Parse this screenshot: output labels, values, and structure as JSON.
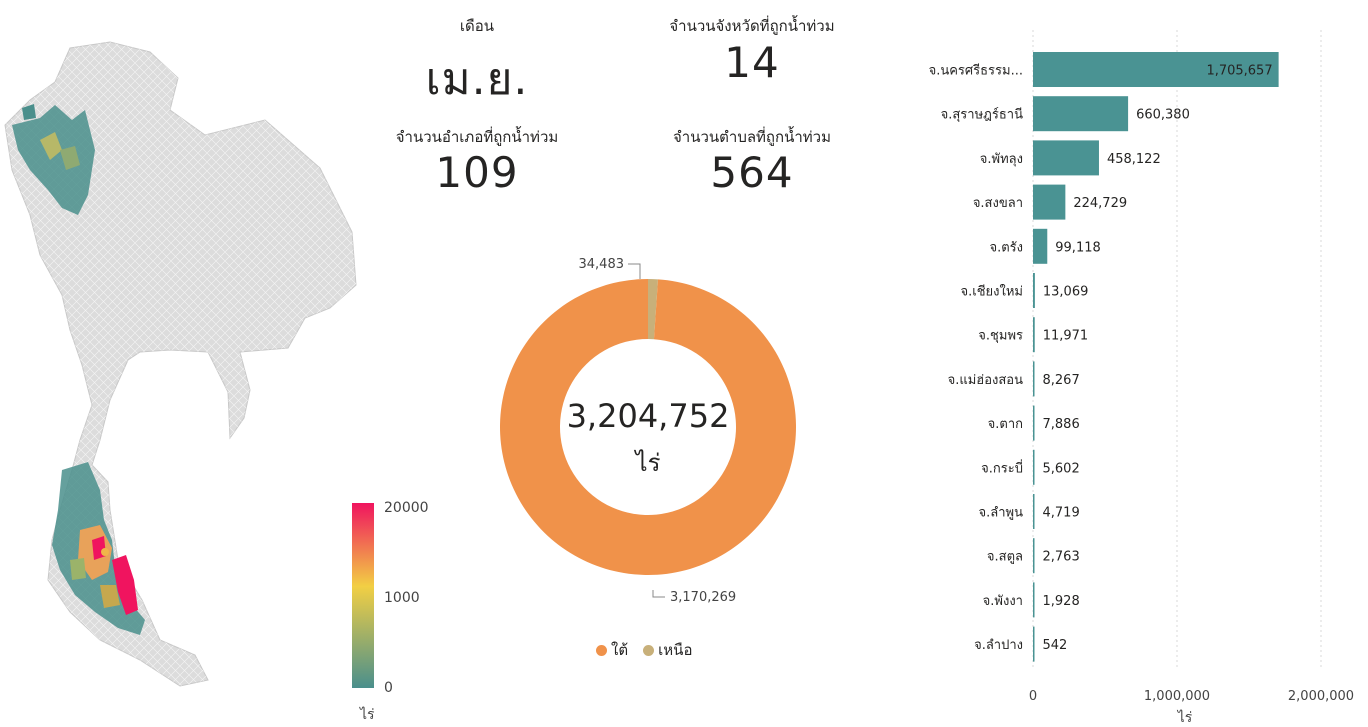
{
  "kpis": {
    "month": {
      "label": "เดือน",
      "value": "เม.ย."
    },
    "provinces": {
      "label": "จำนวนจังหวัดที่ถูกน้ำท่วม",
      "value": "14"
    },
    "districts": {
      "label": "จำนวนอำเภอที่ถูกน้ำท่วม",
      "value": "109"
    },
    "subdistricts": {
      "label": "จำนวนตำบลที่ถูกน้ำท่วม",
      "value": "564"
    }
  },
  "map": {
    "scale_labels": [
      "20000",
      "1000",
      "0"
    ],
    "scale_unit": "ไร่",
    "colors": {
      "high": "#f0145f",
      "mid": "#f2cf44",
      "low": "#4a8f8c",
      "land": "#dcdcdc"
    }
  },
  "chart_data": [
    {
      "type": "pie",
      "donut": true,
      "center_value": "3,204,752",
      "center_unit": "ไร่",
      "slice_labels": [
        "3,170,269",
        "34,483"
      ],
      "series": [
        {
          "name": "ใต้",
          "value": 3170269,
          "color": "#f0924a"
        },
        {
          "name": "เหนือ",
          "value": 34483,
          "color": "#c8b07a"
        }
      ]
    },
    {
      "type": "bar",
      "orientation": "horizontal",
      "categories": [
        "จ.นครศรีธรรม...",
        "จ.สุราษฎร์ธานี",
        "จ.พัทลุง",
        "จ.สงขลา",
        "จ.ตรัง",
        "จ.เชียงใหม่",
        "จ.ชุมพร",
        "จ.แม่ฮ่องสอน",
        "จ.ตาก",
        "จ.กระบี่",
        "จ.ลำพูน",
        "จ.สตูล",
        "จ.พังงา",
        "จ.ลำปาง"
      ],
      "values": [
        1705657,
        660380,
        458122,
        224729,
        99118,
        13069,
        11971,
        8267,
        7886,
        5602,
        4719,
        2763,
        1928,
        542
      ],
      "value_labels": [
        "1,705,657",
        "660,380",
        "458,122",
        "224,729",
        "99,118",
        "13,069",
        "11,971",
        "8,267",
        "7,886",
        "5,602",
        "4,719",
        "2,763",
        "1,928",
        "542"
      ],
      "xlabel": "ไร่",
      "xlim": [
        0,
        2000000
      ],
      "x_ticks": [
        0,
        1000000,
        2000000
      ],
      "x_tick_labels": [
        "0",
        "1,000,000",
        "2,000,000"
      ],
      "bar_color": "#4a9393",
      "grid": true
    }
  ]
}
